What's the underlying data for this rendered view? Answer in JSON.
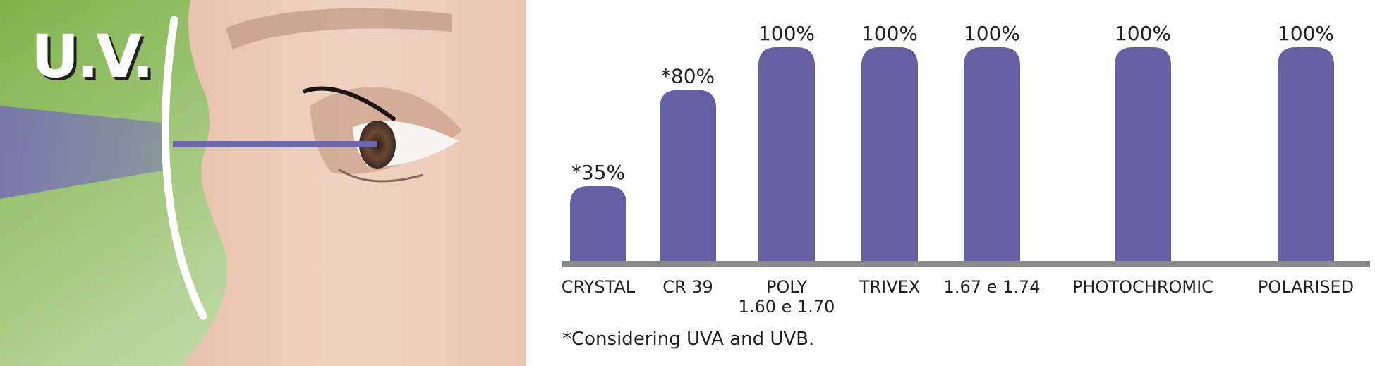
{
  "photo": {
    "overlay_text": "U.V."
  },
  "chart_data": {
    "type": "bar",
    "categories": [
      "CRYSTAL",
      "CR 39",
      "POLY\n1.60 e 1.70",
      "TRIVEX",
      "1.67 e 1.74",
      "PHOTOCHROMIC",
      "POLARISED"
    ],
    "values": [
      35,
      80,
      100,
      100,
      100,
      100,
      100
    ],
    "value_labels": [
      "*35%",
      "*80%",
      "100%",
      "100%",
      "100%",
      "100%",
      "100%"
    ],
    "ylim": [
      0,
      100
    ],
    "grid": false,
    "legend": "none",
    "title": "",
    "xlabel": "",
    "ylabel": "",
    "annotations": [
      "*Considering UVA and UVB."
    ],
    "colors": {
      "bar": "#665fa3",
      "baseline": "#8a8a8a",
      "text": "#231f20"
    }
  }
}
